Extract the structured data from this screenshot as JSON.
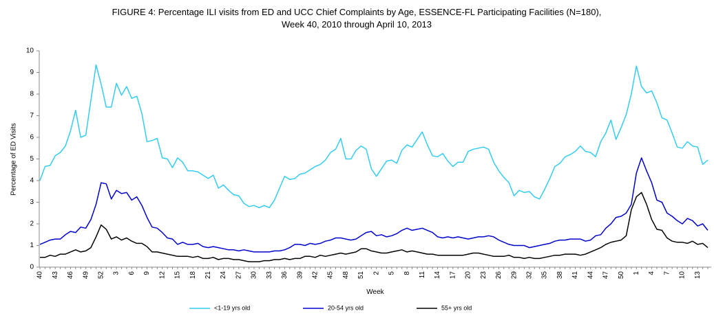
{
  "chart_data": {
    "type": "line",
    "title": [
      "FIGURE 4: Percentage ILI visits from ED and UCC Chief Complaints by Age, ESSENCE-FL Participating Facilities (N=180),",
      "Week  40, 2010 through April 10, 2013"
    ],
    "x_label": "Week",
    "y_label": "Percentage of ED Visits",
    "ylim": [
      0,
      10
    ],
    "yticks": [
      0,
      1,
      2,
      3,
      4,
      5,
      6,
      7,
      8,
      9,
      10
    ],
    "grid": false,
    "legend": "bottom",
    "categories": [
      "40",
      null,
      null,
      "43",
      null,
      null,
      "46",
      null,
      null,
      "49",
      null,
      null,
      "52",
      null,
      null,
      "3",
      null,
      null,
      "6",
      null,
      null,
      "9",
      null,
      null,
      "12",
      null,
      null,
      "15",
      null,
      null,
      "18",
      null,
      null,
      "21",
      null,
      null,
      "24",
      null,
      null,
      "27",
      null,
      null,
      "30",
      null,
      null,
      "33",
      null,
      null,
      "36",
      null,
      null,
      "39",
      null,
      null,
      "42",
      null,
      null,
      "45",
      null,
      null,
      "48",
      null,
      null,
      "51",
      null,
      null,
      "2",
      null,
      null,
      "5",
      null,
      null,
      "8",
      null,
      null,
      "11",
      null,
      null,
      "14",
      null,
      null,
      "17",
      null,
      null,
      "20",
      null,
      null,
      "23",
      null,
      null,
      "26",
      null,
      null,
      "29",
      null,
      null,
      "32",
      null,
      null,
      "35",
      null,
      null,
      "38",
      null,
      null,
      "41",
      null,
      null,
      "44",
      null,
      null,
      "47",
      null,
      null,
      "50",
      null,
      null,
      "1",
      null,
      null,
      "4",
      null,
      null,
      "7",
      null,
      null,
      "10",
      null,
      null,
      "13",
      null,
      null
    ],
    "series": [
      {
        "name": "<1-19 yrs old",
        "color": "#33ccf0",
        "values": [
          4.0,
          4.65,
          4.7,
          5.15,
          5.3,
          5.6,
          6.3,
          7.25,
          6.0,
          6.1,
          7.7,
          9.35,
          8.45,
          7.4,
          7.4,
          8.5,
          7.95,
          8.35,
          7.8,
          7.9,
          7.1,
          5.8,
          5.85,
          5.95,
          5.05,
          5.0,
          4.6,
          5.05,
          4.85,
          4.45,
          4.45,
          4.4,
          4.25,
          4.1,
          4.25,
          3.65,
          3.8,
          3.55,
          3.35,
          3.3,
          2.95,
          2.8,
          2.85,
          2.75,
          2.85,
          2.75,
          3.1,
          3.65,
          4.2,
          4.05,
          4.1,
          4.3,
          4.35,
          4.5,
          4.65,
          4.75,
          4.95,
          5.3,
          5.45,
          5.95,
          5.0,
          5.0,
          5.4,
          5.6,
          5.45,
          4.55,
          4.2,
          4.55,
          4.9,
          4.95,
          4.8,
          5.4,
          5.65,
          5.55,
          5.9,
          6.25,
          5.65,
          5.15,
          5.1,
          5.25,
          4.9,
          4.65,
          4.85,
          4.85,
          5.35,
          5.45,
          5.5,
          5.55,
          5.45,
          4.85,
          4.45,
          4.15,
          3.9,
          3.3,
          3.55,
          3.45,
          3.5,
          3.25,
          3.15,
          3.6,
          4.1,
          4.65,
          4.8,
          5.1,
          5.2,
          5.35,
          5.6,
          5.35,
          5.3,
          5.1,
          5.8,
          6.2,
          6.8,
          5.9,
          6.45,
          7.05,
          8.0,
          9.3,
          8.35,
          8.05,
          8.15,
          7.6,
          6.9,
          6.8,
          6.2,
          5.55,
          5.5,
          5.8,
          5.6,
          5.55,
          4.75,
          4.95
        ]
      },
      {
        "name": "20-54 yrs old",
        "color": "#0000cc",
        "values": [
          1.05,
          1.15,
          1.25,
          1.3,
          1.3,
          1.5,
          1.65,
          1.6,
          1.85,
          1.8,
          2.2,
          2.9,
          3.9,
          3.85,
          3.15,
          3.55,
          3.4,
          3.45,
          3.1,
          3.25,
          2.85,
          2.3,
          1.85,
          1.8,
          1.6,
          1.35,
          1.3,
          1.05,
          1.15,
          1.05,
          1.05,
          1.1,
          0.95,
          0.9,
          0.95,
          0.9,
          0.85,
          0.8,
          0.8,
          0.75,
          0.8,
          0.75,
          0.7,
          0.7,
          0.7,
          0.7,
          0.75,
          0.75,
          0.8,
          0.9,
          1.05,
          1.05,
          1.0,
          1.1,
          1.05,
          1.1,
          1.2,
          1.25,
          1.35,
          1.35,
          1.3,
          1.25,
          1.3,
          1.45,
          1.6,
          1.65,
          1.45,
          1.5,
          1.4,
          1.45,
          1.55,
          1.7,
          1.8,
          1.7,
          1.75,
          1.8,
          1.7,
          1.6,
          1.4,
          1.35,
          1.4,
          1.35,
          1.4,
          1.35,
          1.3,
          1.35,
          1.4,
          1.4,
          1.45,
          1.4,
          1.25,
          1.15,
          1.05,
          1.0,
          1.0,
          1.0,
          0.9,
          0.95,
          1.0,
          1.05,
          1.1,
          1.2,
          1.25,
          1.25,
          1.3,
          1.3,
          1.3,
          1.2,
          1.25,
          1.45,
          1.5,
          1.8,
          2.0,
          2.3,
          2.35,
          2.5,
          2.9,
          4.35,
          5.05,
          4.45,
          3.9,
          3.1,
          3.0,
          2.5,
          2.35,
          2.15,
          2.0,
          2.25,
          2.15,
          1.9,
          2.0,
          1.7
        ]
      },
      {
        "name": "55+ yrs old",
        "color": "#000000",
        "values": [
          0.45,
          0.45,
          0.55,
          0.5,
          0.6,
          0.6,
          0.7,
          0.8,
          0.7,
          0.75,
          0.9,
          1.4,
          1.95,
          1.75,
          1.3,
          1.4,
          1.25,
          1.35,
          1.2,
          1.1,
          1.1,
          0.95,
          0.7,
          0.7,
          0.65,
          0.6,
          0.55,
          0.5,
          0.5,
          0.5,
          0.45,
          0.5,
          0.4,
          0.4,
          0.45,
          0.35,
          0.4,
          0.4,
          0.35,
          0.35,
          0.3,
          0.25,
          0.25,
          0.25,
          0.3,
          0.3,
          0.35,
          0.35,
          0.4,
          0.35,
          0.4,
          0.4,
          0.5,
          0.5,
          0.45,
          0.55,
          0.5,
          0.55,
          0.6,
          0.65,
          0.6,
          0.65,
          0.7,
          0.85,
          0.85,
          0.75,
          0.7,
          0.65,
          0.65,
          0.7,
          0.75,
          0.8,
          0.7,
          0.75,
          0.7,
          0.65,
          0.6,
          0.6,
          0.55,
          0.55,
          0.55,
          0.55,
          0.55,
          0.55,
          0.6,
          0.65,
          0.65,
          0.6,
          0.55,
          0.5,
          0.5,
          0.5,
          0.55,
          0.45,
          0.45,
          0.4,
          0.45,
          0.4,
          0.4,
          0.45,
          0.5,
          0.55,
          0.55,
          0.6,
          0.6,
          0.6,
          0.55,
          0.6,
          0.7,
          0.8,
          0.9,
          1.05,
          1.15,
          1.2,
          1.25,
          1.45,
          2.65,
          3.25,
          3.45,
          2.9,
          2.2,
          1.75,
          1.7,
          1.35,
          1.2,
          1.15,
          1.15,
          1.1,
          1.2,
          1.05,
          1.1,
          0.9
        ]
      }
    ]
  }
}
